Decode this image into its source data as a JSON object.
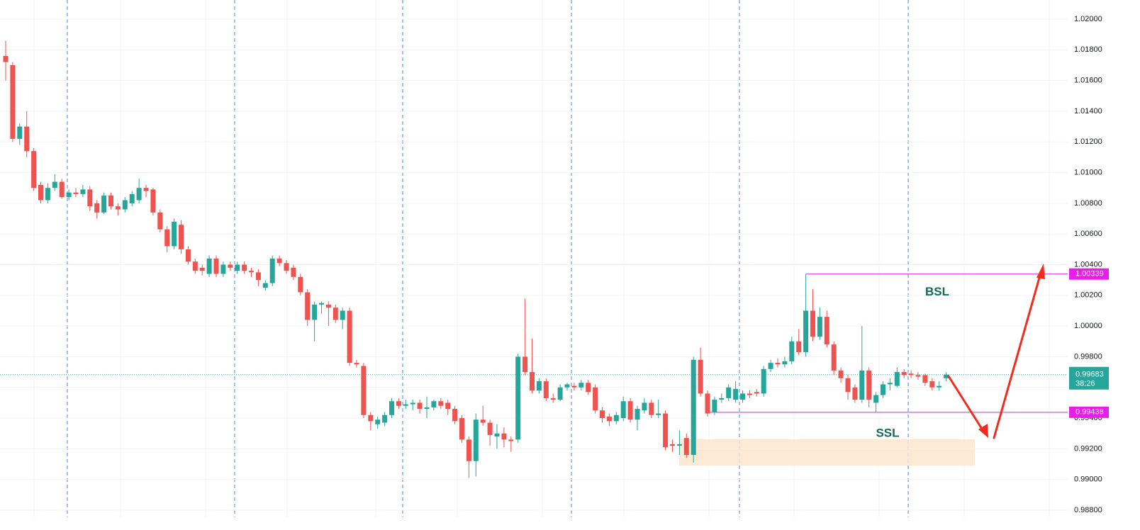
{
  "chart_data": {
    "type": "candlestick",
    "ylim": [
      0.988,
      1.02
    ],
    "yticks": [
      {
        "value": 1.02,
        "label": "1.02000"
      },
      {
        "value": 1.018,
        "label": "1.01800"
      },
      {
        "value": 1.016,
        "label": "1.01600"
      },
      {
        "value": 1.014,
        "label": "1.01400"
      },
      {
        "value": 1.012,
        "label": "1.01200"
      },
      {
        "value": 1.01,
        "label": "1.01000"
      },
      {
        "value": 1.008,
        "label": "1.00800"
      },
      {
        "value": 1.006,
        "label": "1.00600"
      },
      {
        "value": 1.004,
        "label": "1.00400"
      },
      {
        "value": 1.002,
        "label": "1.00200"
      },
      {
        "value": 1.0,
        "label": "1.00000"
      },
      {
        "value": 0.998,
        "label": "0.99800"
      },
      {
        "value": 0.996,
        "label": "0.99600"
      },
      {
        "value": 0.994,
        "label": "0.99400"
      },
      {
        "value": 0.992,
        "label": "0.99200"
      },
      {
        "value": 0.99,
        "label": "0.99000"
      },
      {
        "value": 0.988,
        "label": "0.98800"
      }
    ],
    "up_color": "#26a69a",
    "down_color": "#ef5350",
    "candles": [
      [
        1.0176,
        1.0186,
        1.016,
        1.0172
      ],
      [
        1.017,
        1.0172,
        1.012,
        1.0122
      ],
      [
        1.0122,
        1.0132,
        1.0118,
        1.013
      ],
      [
        1.013,
        1.014,
        1.011,
        1.0114
      ],
      [
        1.0114,
        1.0116,
        1.0088,
        1.009
      ],
      [
        1.0092,
        1.0094,
        1.008,
        1.0082
      ],
      [
        1.0082,
        1.0093,
        1.008,
        1.009
      ],
      [
        1.009,
        1.0099,
        1.0088,
        1.0094
      ],
      [
        1.0094,
        1.0096,
        1.0083,
        1.0084
      ],
      [
        1.0084,
        1.0089,
        1.0082,
        1.0087
      ],
      [
        1.0087,
        1.009,
        1.0084,
        1.0086
      ],
      [
        1.0086,
        1.0092,
        1.0084,
        1.0089
      ],
      [
        1.0089,
        1.0091,
        1.0075,
        1.0078
      ],
      [
        1.008,
        1.0082,
        1.007,
        1.0074
      ],
      [
        1.0074,
        1.0087,
        1.0073,
        1.0085
      ],
      [
        1.0085,
        1.0087,
        1.0076,
        1.0078
      ],
      [
        1.0078,
        1.008,
        1.0072,
        1.0076
      ],
      [
        1.0076,
        1.0084,
        1.0074,
        1.0082
      ],
      [
        1.008,
        1.0088,
        1.0078,
        1.0086
      ],
      [
        1.0082,
        1.0096,
        1.008,
        1.009
      ],
      [
        1.009,
        1.0092,
        1.0084,
        1.0088
      ],
      [
        1.0089,
        1.009,
        1.0072,
        1.0074
      ],
      [
        1.0074,
        1.0076,
        1.0061,
        1.0063
      ],
      [
        1.0063,
        1.0065,
        1.0048,
        1.0052
      ],
      [
        1.0052,
        1.007,
        1.005,
        1.0068
      ],
      [
        1.0066,
        1.0069,
        1.0047,
        1.005
      ],
      [
        1.005,
        1.0052,
        1.004,
        1.0042
      ],
      [
        1.0042,
        1.0044,
        1.0034,
        1.0036
      ],
      [
        1.0038,
        1.004,
        1.0033,
        1.0036
      ],
      [
        1.0034,
        1.0046,
        1.0032,
        1.0044
      ],
      [
        1.0044,
        1.0046,
        1.0032,
        1.0034
      ],
      [
        1.0034,
        1.0042,
        1.0032,
        1.004
      ],
      [
        1.004,
        1.0042,
        1.0036,
        1.0038
      ],
      [
        1.0036,
        1.0042,
        1.0034,
        1.004
      ],
      [
        1.004,
        1.0042,
        1.0034,
        1.0036
      ],
      [
        1.0036,
        1.0038,
        1.0032,
        1.0035
      ],
      [
        1.0035,
        1.0037,
        1.0026,
        1.003
      ],
      [
        1.0025,
        1.003,
        1.0023,
        1.0028
      ],
      [
        1.0028,
        1.0046,
        1.0026,
        1.0044
      ],
      [
        1.0044,
        1.0046,
        1.0039,
        1.0041
      ],
      [
        1.0041,
        1.0043,
        1.0034,
        1.0036
      ],
      [
        1.0038,
        1.004,
        1.003,
        1.0032
      ],
      [
        1.0032,
        1.0034,
        1.002,
        1.0022
      ],
      [
        1.0022,
        1.0024,
        1.0,
        1.0004
      ],
      [
        1.0004,
        1.0016,
        0.999,
        1.0014
      ],
      [
        1.0014,
        1.0016,
        1.0008,
        1.0015
      ],
      [
        1.0014,
        1.0016,
        1.0,
        1.0012
      ],
      [
        1.0012,
        1.0014,
        1.0002,
        1.0004
      ],
      [
        1.0004,
        1.0012,
        0.9998,
        1.001
      ],
      [
        1.001,
        1.0012,
        0.9974,
        0.9976
      ],
      [
        0.9976,
        0.9978,
        0.9973,
        0.9975
      ],
      [
        0.9974,
        0.9976,
        0.994,
        0.9942
      ],
      [
        0.9942,
        0.9944,
        0.9932,
        0.9938
      ],
      [
        0.9936,
        0.9941,
        0.9933,
        0.9939
      ],
      [
        0.9937,
        0.9944,
        0.9935,
        0.9942
      ],
      [
        0.9942,
        0.9953,
        0.994,
        0.9951
      ],
      [
        0.9951,
        0.9953,
        0.9946,
        0.9948
      ],
      [
        0.9948,
        0.9952,
        0.9946,
        0.9949
      ],
      [
        0.9949,
        0.9952,
        0.9945,
        0.995
      ],
      [
        0.995,
        0.9952,
        0.9943,
        0.9946
      ],
      [
        0.9946,
        0.9954,
        0.994,
        0.9947
      ],
      [
        0.9947,
        0.9952,
        0.9945,
        0.9951
      ],
      [
        0.9951,
        0.9953,
        0.9946,
        0.9948
      ],
      [
        0.995,
        0.9952,
        0.9942,
        0.9946
      ],
      [
        0.9946,
        0.9948,
        0.9936,
        0.9938
      ],
      [
        0.994,
        0.9942,
        0.9924,
        0.9926
      ],
      [
        0.9926,
        0.9928,
        0.9901,
        0.9912
      ],
      [
        0.9912,
        0.9943,
        0.9902,
        0.9939
      ],
      [
        0.9939,
        0.9948,
        0.9935,
        0.9937
      ],
      [
        0.9937,
        0.9939,
        0.9922,
        0.9929
      ],
      [
        0.9928,
        0.9936,
        0.992,
        0.993
      ],
      [
        0.993,
        0.9934,
        0.9921,
        0.9926
      ],
      [
        0.9926,
        0.9928,
        0.9918,
        0.9925
      ],
      [
        0.9926,
        0.9982,
        0.9924,
        0.998
      ],
      [
        0.998,
        1.0018,
        0.9968,
        0.997
      ],
      [
        0.997,
        0.9992,
        0.9956,
        0.9958
      ],
      [
        0.9958,
        0.9966,
        0.9956,
        0.9964
      ],
      [
        0.9964,
        0.9966,
        0.9951,
        0.9953
      ],
      [
        0.9953,
        0.9956,
        0.995,
        0.9952
      ],
      [
        0.9952,
        0.9962,
        0.9951,
        0.996
      ],
      [
        0.996,
        0.9963,
        0.9958,
        0.9962
      ],
      [
        0.9961,
        0.9963,
        0.9958,
        0.996
      ],
      [
        0.996,
        0.9965,
        0.9958,
        0.9963
      ],
      [
        0.9963,
        0.9965,
        0.9955,
        0.9957
      ],
      [
        0.996,
        0.9962,
        0.9943,
        0.9945
      ],
      [
        0.9945,
        0.9947,
        0.9937,
        0.994
      ],
      [
        0.9941,
        0.9943,
        0.9935,
        0.9938
      ],
      [
        0.9938,
        0.9944,
        0.9936,
        0.9942
      ],
      [
        0.994,
        0.9954,
        0.9938,
        0.9951
      ],
      [
        0.9951,
        0.9953,
        0.9937,
        0.9939
      ],
      [
        0.9939,
        0.9948,
        0.9932,
        0.9946
      ],
      [
        0.9945,
        0.9953,
        0.9943,
        0.995
      ],
      [
        0.995,
        0.9952,
        0.994,
        0.9942
      ],
      [
        0.9942,
        0.9952,
        0.994,
        0.9943
      ],
      [
        0.9943,
        0.9945,
        0.9919,
        0.9921
      ],
      [
        0.9923,
        0.9926,
        0.9918,
        0.9922
      ],
      [
        0.9922,
        0.9932,
        0.9916,
        0.9923
      ],
      [
        0.9927,
        0.993,
        0.9914,
        0.9916
      ],
      [
        0.9916,
        0.998,
        0.9911,
        0.9978
      ],
      [
        0.9978,
        0.9986,
        0.9954,
        0.9956
      ],
      [
        0.9956,
        0.9958,
        0.9941,
        0.9943
      ],
      [
        0.9944,
        0.9954,
        0.9942,
        0.9952
      ],
      [
        0.9952,
        0.9956,
        0.995,
        0.9953
      ],
      [
        0.9953,
        0.9962,
        0.9951,
        0.996
      ],
      [
        0.9952,
        0.9964,
        0.995,
        0.9959
      ],
      [
        0.9952,
        0.9958,
        0.995,
        0.9956
      ],
      [
        0.9956,
        0.9958,
        0.9953,
        0.9955
      ],
      [
        0.9957,
        0.9959,
        0.9954,
        0.9956
      ],
      [
        0.9956,
        0.9974,
        0.9954,
        0.9972
      ],
      [
        0.9972,
        0.9978,
        0.997,
        0.9976
      ],
      [
        0.9976,
        0.9979,
        0.9973,
        0.9975
      ],
      [
        0.9975,
        0.998,
        0.9973,
        0.9977
      ],
      [
        0.9977,
        0.9993,
        0.9975,
        0.999
      ],
      [
        0.999,
        0.9998,
        0.9981,
        0.9983
      ],
      [
        0.9983,
        1.00339,
        0.998,
        1.001
      ],
      [
        1.001,
        1.0024,
        0.999,
        0.9993
      ],
      [
        0.9993,
        1.0012,
        0.9991,
        1.0006
      ],
      [
        1.0006,
        1.001,
        0.9986,
        0.9988
      ],
      [
        0.9988,
        0.999,
        0.9968,
        0.9971
      ],
      [
        0.9971,
        0.9973,
        0.9963,
        0.9966
      ],
      [
        0.9966,
        0.9968,
        0.9952,
        0.9957
      ],
      [
        0.996,
        0.9962,
        0.995,
        0.9952
      ],
      [
        0.9952,
        1.0,
        0.995,
        0.9971
      ],
      [
        0.9971,
        0.9973,
        0.9947,
        0.9952
      ],
      [
        0.995,
        0.9957,
        0.9944,
        0.9955
      ],
      [
        0.9955,
        0.9964,
        0.9953,
        0.9962
      ],
      [
        0.9962,
        0.9966,
        0.9958,
        0.9963
      ],
      [
        0.9961,
        0.9973,
        0.996,
        0.997
      ],
      [
        0.997,
        0.9972,
        0.9966,
        0.9968
      ],
      [
        0.9969,
        0.9971,
        0.9966,
        0.9968
      ],
      [
        0.9968,
        0.997,
        0.9965,
        0.9967
      ],
      [
        0.9968,
        0.9969,
        0.9961,
        0.9963
      ],
      [
        0.9964,
        0.9966,
        0.9958,
        0.996
      ],
      [
        0.996,
        0.9964,
        0.9958,
        0.9961
      ],
      [
        0.9966,
        0.997,
        0.9964,
        0.99683
      ]
    ],
    "last_price": 0.99683,
    "countdown": "38:26",
    "levels": [
      {
        "name": "BSL",
        "value": 1.00339,
        "color": "#e81ee8"
      },
      {
        "name": "SSL",
        "value": 0.99438,
        "color": "#e81ee8"
      }
    ]
  }
}
